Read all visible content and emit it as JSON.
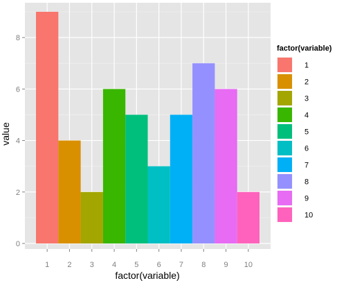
{
  "chart_data": {
    "type": "bar",
    "xlabel": "factor(variable)",
    "ylabel": "value",
    "categories": [
      "1",
      "2",
      "3",
      "4",
      "5",
      "6",
      "7",
      "8",
      "9",
      "10"
    ],
    "values": [
      9,
      4,
      2,
      6,
      5,
      3,
      5,
      7,
      6,
      2
    ],
    "ylim": [
      0,
      9
    ],
    "yticks": [
      0,
      2,
      4,
      6,
      8
    ],
    "grid": true,
    "legend": {
      "title": "factor(variable)",
      "placement": "right",
      "labels": [
        "1",
        "2",
        "3",
        "4",
        "5",
        "6",
        "7",
        "8",
        "9",
        "10"
      ]
    },
    "colors": [
      "#F8766D",
      "#D89000",
      "#A3A500",
      "#39B600",
      "#00BF7D",
      "#00BFC4",
      "#00B0F6",
      "#9590FF",
      "#E76BF3",
      "#FF62BC"
    ],
    "panel_background": "#E5E5E5",
    "grid_color": "#FFFFFF"
  }
}
